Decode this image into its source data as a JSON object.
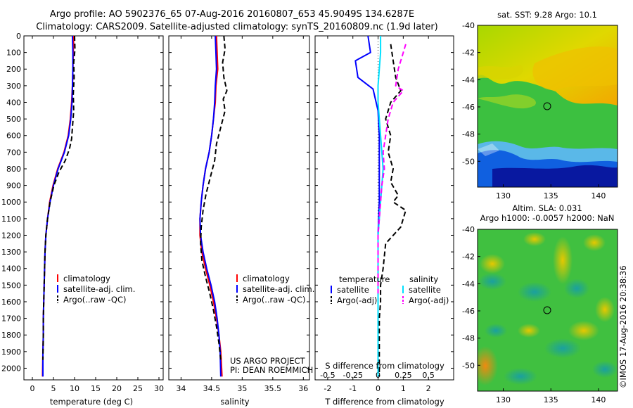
{
  "title_line1": "Argo profile: AO 5902376_65 07-Aug-2016 20160807_653 45.9049S 134.6287E",
  "title_line2": "Climatology: CARS2009. Satellite-adjusted climatology: synTS_20160809.nc (1.9d later)",
  "colors": {
    "climatology": "#ff0000",
    "satellite": "#0000ff",
    "argo": "#000000",
    "salinity_sat": "#00e0ff",
    "salinity_argo": "#ff00ff"
  },
  "chart_data": [
    {
      "id": "temperature",
      "type": "line",
      "xlabel": "temperature (deg C)",
      "ylabel": "",
      "xlim": [
        -2,
        31
      ],
      "xticks": [
        0,
        5,
        10,
        15,
        20,
        25,
        30
      ],
      "ylim": [
        2070,
        0
      ],
      "yticks": [
        0,
        100,
        200,
        300,
        400,
        500,
        600,
        700,
        800,
        900,
        1000,
        1100,
        1200,
        1300,
        1400,
        1500,
        1600,
        1700,
        1800,
        1900,
        2000
      ],
      "legend": [
        "climatology",
        "satellite-adj. clim.",
        "Argo(..raw -QC)"
      ],
      "series": [
        {
          "name": "climatology",
          "style": "solid",
          "color": "#ff0000",
          "x": [
            9.8,
            9.7,
            9.6,
            9.5,
            9.3,
            9.0,
            8.5,
            7.5,
            6.0,
            4.9,
            4.1,
            3.6,
            3.2,
            3.0,
            2.9,
            2.8,
            2.7,
            2.6,
            2.6,
            2.5,
            2.4
          ],
          "y": [
            0,
            100,
            200,
            300,
            400,
            500,
            600,
            700,
            800,
            900,
            1000,
            1100,
            1200,
            1300,
            1400,
            1500,
            1600,
            1700,
            1800,
            1900,
            2050
          ]
        },
        {
          "name": "satellite-adj. clim.",
          "style": "solid",
          "color": "#0000ff",
          "x": [
            9.5,
            9.6,
            9.6,
            9.5,
            9.4,
            9.1,
            8.6,
            7.6,
            6.1,
            5.0,
            4.2,
            3.6,
            3.2,
            3.0,
            2.9,
            2.8,
            2.7,
            2.6,
            2.6,
            2.5,
            2.5
          ],
          "y": [
            0,
            100,
            200,
            300,
            400,
            500,
            600,
            700,
            800,
            900,
            1000,
            1100,
            1200,
            1300,
            1400,
            1500,
            1600,
            1700,
            1800,
            1900,
            2050
          ]
        },
        {
          "name": "Argo(..raw -QC)",
          "style": "dash",
          "color": "#000000",
          "x": [
            10.0,
            10.1,
            9.8,
            9.9,
            9.7,
            9.8,
            9.5,
            9.3,
            8.8,
            7.8,
            6.3,
            5.1,
            4.2,
            3.6,
            3.2,
            3.0,
            2.9,
            2.8,
            2.7,
            2.6,
            2.6,
            2.5
          ],
          "y": [
            0,
            80,
            160,
            250,
            350,
            450,
            550,
            620,
            680,
            750,
            820,
            900,
            1000,
            1100,
            1200,
            1300,
            1400,
            1500,
            1600,
            1700,
            1800,
            1950
          ]
        }
      ]
    },
    {
      "id": "salinity",
      "type": "line",
      "xlabel": "salinity",
      "ylabel": "",
      "xlim": [
        33.8,
        36.1
      ],
      "xticks": [
        34,
        34.5,
        35,
        35.5,
        36
      ],
      "ylim": [
        2070,
        0
      ],
      "legend": [
        "climatology",
        "satellite-adj. clim.",
        "Argo(..raw -QC)"
      ],
      "annotation": [
        "US ARGO PROJECT",
        "PI: DEAN ROEMMICH"
      ],
      "series": [
        {
          "name": "climatology",
          "style": "solid",
          "color": "#ff0000",
          "x": [
            34.58,
            34.59,
            34.6,
            34.57,
            34.56,
            34.53,
            34.5,
            34.46,
            34.4,
            34.36,
            34.33,
            34.31,
            34.31,
            34.34,
            34.4,
            34.47,
            34.53,
            34.58,
            34.62,
            34.65,
            34.67
          ],
          "y": [
            0,
            100,
            200,
            300,
            400,
            500,
            600,
            700,
            800,
            900,
            1000,
            1100,
            1200,
            1300,
            1400,
            1500,
            1600,
            1700,
            1800,
            1900,
            2050
          ]
        },
        {
          "name": "satellite-adj. clim.",
          "style": "solid",
          "color": "#0000ff",
          "x": [
            34.56,
            34.57,
            34.58,
            34.56,
            34.55,
            34.53,
            34.5,
            34.46,
            34.4,
            34.36,
            34.33,
            34.31,
            34.32,
            34.36,
            34.42,
            34.49,
            34.55,
            34.59,
            34.62,
            34.64,
            34.65
          ],
          "y": [
            0,
            100,
            200,
            300,
            400,
            500,
            600,
            700,
            800,
            900,
            1000,
            1100,
            1200,
            1300,
            1400,
            1500,
            1600,
            1700,
            1800,
            1900,
            2050
          ]
        },
        {
          "name": "Argo(..raw -QC)",
          "style": "dash",
          "color": "#000000",
          "x": [
            34.7,
            34.72,
            34.68,
            34.7,
            34.75,
            34.69,
            34.72,
            34.65,
            34.58,
            34.55,
            34.48,
            34.41,
            34.36,
            34.33,
            34.32,
            34.34,
            34.4,
            34.47,
            34.53,
            34.58,
            34.62,
            34.65
          ],
          "y": [
            0,
            80,
            160,
            250,
            330,
            380,
            450,
            550,
            650,
            750,
            850,
            950,
            1050,
            1150,
            1250,
            1350,
            1450,
            1550,
            1650,
            1750,
            1850,
            1950
          ]
        }
      ]
    },
    {
      "id": "difference",
      "type": "line",
      "xlabel": "T difference from climatology",
      "x2label": "S difference from climatology",
      "xlim": [
        -2.5,
        3
      ],
      "xticks": [
        -2,
        -1,
        0,
        1,
        2
      ],
      "x2ticks": [
        "-0.5",
        "-0.25",
        "0",
        "0.25",
        "0.5"
      ],
      "ylim": [
        2070,
        0
      ],
      "legend_headers": [
        "temperature",
        "salinity"
      ],
      "legend": [
        "satellite",
        "Argo(-adj)",
        "satellite",
        "Argo(-adj)"
      ],
      "series": [
        {
          "name": "temperature satellite",
          "style": "solid",
          "color": "#0000ff",
          "x": [
            -0.4,
            -0.3,
            -0.9,
            -0.8,
            -0.2,
            0,
            0.05,
            0.05,
            0.05,
            0.05,
            0.05,
            0.02,
            0,
            0,
            0,
            0,
            0,
            0,
            0,
            0
          ],
          "y": [
            0,
            100,
            150,
            250,
            320,
            450,
            600,
            700,
            800,
            900,
            1000,
            1100,
            1200,
            1300,
            1400,
            1500,
            1600,
            1700,
            1800,
            2050
          ]
        },
        {
          "name": "temperature Argo(-adj)",
          "style": "dash",
          "color": "#000000",
          "x": [
            0.5,
            0.6,
            0.7,
            0.9,
            0.5,
            0.3,
            0.5,
            0.4,
            0.6,
            0.5,
            0.8,
            0.6,
            1.1,
            0.9,
            0.3,
            0.2,
            0.1,
            0.1,
            0.05,
            0.05,
            0.05
          ],
          "y": [
            50,
            150,
            250,
            330,
            400,
            500,
            600,
            700,
            800,
            880,
            960,
            1000,
            1050,
            1150,
            1250,
            1400,
            1500,
            1600,
            1700,
            1850,
            2050
          ]
        },
        {
          "name": "salinity satellite",
          "style": "solid",
          "color": "#00e0ff",
          "x": [
            0.1,
            0.1,
            0.05,
            0,
            0,
            0.05,
            0.1,
            0.15,
            0.2,
            0.15,
            0.1,
            0.05,
            0,
            0,
            0,
            0,
            0,
            0,
            0
          ],
          "y": [
            0,
            100,
            200,
            300,
            400,
            500,
            600,
            700,
            800,
            900,
            1000,
            1100,
            1200,
            1300,
            1400,
            1500,
            1600,
            1800,
            2050
          ]
        },
        {
          "name": "salinity Argo(-adj)",
          "style": "dash",
          "color": "#ff00ff",
          "x": [
            1.1,
            1.0,
            0.8,
            0.7,
            1.0,
            0.6,
            0.4,
            0.3,
            0.2,
            0.25,
            0.15,
            0.1,
            0.05,
            0,
            0,
            0,
            0,
            0
          ],
          "y": [
            50,
            100,
            200,
            300,
            330,
            400,
            500,
            600,
            700,
            800,
            900,
            1000,
            1100,
            1200,
            1300,
            1400,
            1500,
            1550
          ]
        }
      ]
    }
  ],
  "maps": [
    {
      "id": "sst",
      "title": "sat. SST: 9.28 Argo: 10.1",
      "xticks": [
        "130",
        "135",
        "140"
      ],
      "yticks": [
        "-40",
        "-42",
        "-44",
        "-46",
        "-48",
        "-50"
      ]
    },
    {
      "id": "sla",
      "title_line1": "Altim. SLA: 0.031",
      "title_line2": "Argo h1000: -0.0057 h2000: NaN",
      "xticks": [
        "130",
        "135",
        "140"
      ],
      "yticks": [
        "-40",
        "-42",
        "-44",
        "-46",
        "-48",
        "-50"
      ]
    }
  ],
  "stamp": "©IMOS 17-Aug-2016 20:38:36"
}
